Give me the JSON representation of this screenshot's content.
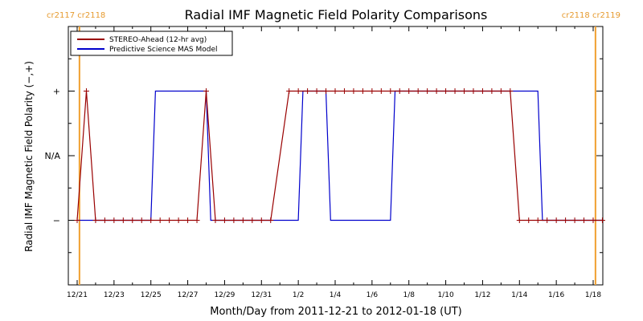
{
  "chart_data": {
    "type": "line",
    "title": "Radial IMF Magnetic Field Polarity Comparisons",
    "xlabel": "Month/Day from 2011-12-21 to 2012-01-18 (UT)",
    "ylabel": "Radial IMF Magnetic Field Polarity (−,+)",
    "x_unit": "date (UT)",
    "x_range": [
      "2011-12-21",
      "2012-01-18"
    ],
    "y_categories": [
      "−",
      "N/A",
      "+"
    ],
    "y_ticks": [
      {
        "label": "+",
        "value": 1
      },
      {
        "label": "N/A",
        "value": 0
      },
      {
        "label": "−",
        "value": -1
      }
    ],
    "ylim": [
      -2,
      2
    ],
    "x_ticks": [
      {
        "label": "12/21",
        "date": "2011-12-21"
      },
      {
        "label": "12/23",
        "date": "2011-12-23"
      },
      {
        "label": "12/25",
        "date": "2011-12-25"
      },
      {
        "label": "12/27",
        "date": "2011-12-27"
      },
      {
        "label": "12/29",
        "date": "2011-12-29"
      },
      {
        "label": "12/31",
        "date": "2011-12-31"
      },
      {
        "label": "1/2",
        "date": "2012-01-02"
      },
      {
        "label": "1/4",
        "date": "2012-01-04"
      },
      {
        "label": "1/6",
        "date": "2012-01-06"
      },
      {
        "label": "1/8",
        "date": "2012-01-08"
      },
      {
        "label": "1/10",
        "date": "2012-01-10"
      },
      {
        "label": "1/12",
        "date": "2012-01-12"
      },
      {
        "label": "1/14",
        "date": "2012-01-14"
      },
      {
        "label": "1/16",
        "date": "2012-01-16"
      },
      {
        "label": "1/18",
        "date": "2012-01-18"
      }
    ],
    "carrington_markers": [
      {
        "label": "cr2117 cr2118",
        "date": "2011-12-21 03:00",
        "position": "left"
      },
      {
        "label": "cr2118 cr2119",
        "date": "2012-01-18 03:00",
        "position": "right"
      }
    ],
    "legend": {
      "placement": "top-left",
      "entries": [
        {
          "name": "STEREO-Ahead (12-hr avg)",
          "color": "#990000"
        },
        {
          "name": "Predictive Science MAS Model",
          "color": "#0000cc"
        }
      ]
    },
    "series": [
      {
        "name": "STEREO-Ahead (12-hr avg)",
        "color": "#990000",
        "marker": "plus",
        "points": [
          [
            "2011-12-21 00:00",
            -1
          ],
          [
            "2011-12-21 12:00",
            1
          ],
          [
            "2011-12-22 00:00",
            -1
          ],
          [
            "2011-12-22 12:00",
            -1
          ],
          [
            "2011-12-23 00:00",
            -1
          ],
          [
            "2011-12-23 12:00",
            -1
          ],
          [
            "2011-12-24 00:00",
            -1
          ],
          [
            "2011-12-24 12:00",
            -1
          ],
          [
            "2011-12-25 00:00",
            -1
          ],
          [
            "2011-12-25 12:00",
            -1
          ],
          [
            "2011-12-26 00:00",
            -1
          ],
          [
            "2011-12-26 12:00",
            -1
          ],
          [
            "2011-12-27 00:00",
            -1
          ],
          [
            "2011-12-27 12:00",
            -1
          ],
          [
            "2011-12-28 00:00",
            1
          ],
          [
            "2011-12-28 12:00",
            -1
          ],
          [
            "2011-12-29 00:00",
            -1
          ],
          [
            "2011-12-29 12:00",
            -1
          ],
          [
            "2011-12-30 00:00",
            -1
          ],
          [
            "2011-12-30 12:00",
            -1
          ],
          [
            "2011-12-31 00:00",
            -1
          ],
          [
            "2011-12-31 12:00",
            -1
          ],
          [
            "2012-01-01 12:00",
            1
          ],
          [
            "2012-01-02 00:00",
            1
          ],
          [
            "2012-01-02 12:00",
            1
          ],
          [
            "2012-01-03 00:00",
            1
          ],
          [
            "2012-01-03 12:00",
            1
          ],
          [
            "2012-01-04 00:00",
            1
          ],
          [
            "2012-01-04 12:00",
            1
          ],
          [
            "2012-01-05 00:00",
            1
          ],
          [
            "2012-01-05 12:00",
            1
          ],
          [
            "2012-01-06 00:00",
            1
          ],
          [
            "2012-01-06 12:00",
            1
          ],
          [
            "2012-01-07 00:00",
            1
          ],
          [
            "2012-01-07 12:00",
            1
          ],
          [
            "2012-01-08 00:00",
            1
          ],
          [
            "2012-01-08 12:00",
            1
          ],
          [
            "2012-01-09 00:00",
            1
          ],
          [
            "2012-01-09 12:00",
            1
          ],
          [
            "2012-01-10 00:00",
            1
          ],
          [
            "2012-01-10 12:00",
            1
          ],
          [
            "2012-01-11 00:00",
            1
          ],
          [
            "2012-01-11 12:00",
            1
          ],
          [
            "2012-01-12 00:00",
            1
          ],
          [
            "2012-01-12 12:00",
            1
          ],
          [
            "2012-01-13 00:00",
            1
          ],
          [
            "2012-01-13 12:00",
            1
          ],
          [
            "2012-01-14 00:00",
            -1
          ],
          [
            "2012-01-14 12:00",
            -1
          ],
          [
            "2012-01-15 00:00",
            -1
          ],
          [
            "2012-01-15 12:00",
            -1
          ],
          [
            "2012-01-16 00:00",
            -1
          ],
          [
            "2012-01-16 12:00",
            -1
          ],
          [
            "2012-01-17 00:00",
            -1
          ],
          [
            "2012-01-17 12:00",
            -1
          ],
          [
            "2012-01-18 00:00",
            -1
          ],
          [
            "2012-01-18 12:00",
            -1
          ]
        ]
      },
      {
        "name": "Predictive Science MAS Model",
        "color": "#0000cc",
        "marker": "none",
        "points": [
          [
            "2011-12-21 00:00",
            -1
          ],
          [
            "2011-12-25 00:00",
            -1
          ],
          [
            "2011-12-25 06:00",
            1
          ],
          [
            "2011-12-28 00:00",
            1
          ],
          [
            "2011-12-28 06:00",
            -1
          ],
          [
            "2012-01-02 00:00",
            -1
          ],
          [
            "2012-01-02 06:00",
            1
          ],
          [
            "2012-01-03 12:00",
            1
          ],
          [
            "2012-01-03 18:00",
            -1
          ],
          [
            "2012-01-07 00:00",
            -1
          ],
          [
            "2012-01-07 06:00",
            1
          ],
          [
            "2012-01-15 00:00",
            1
          ],
          [
            "2012-01-15 06:00",
            -1
          ],
          [
            "2012-01-18 12:00",
            -1
          ]
        ]
      }
    ],
    "grid": false
  }
}
